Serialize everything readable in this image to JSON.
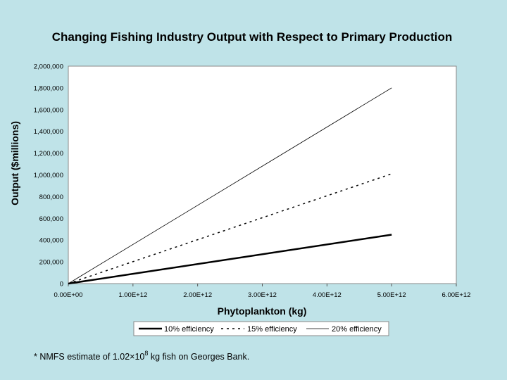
{
  "chart_data": {
    "type": "line",
    "title": "Changing Fishing Industry Output with Respect to Primary Production",
    "xlabel": "Phytoplankton (kg)",
    "ylabel": "Output ($millions)",
    "xlim": [
      0,
      6000000000000
    ],
    "ylim": [
      0,
      2000000
    ],
    "x_ticks": [
      0,
      1000000000000,
      2000000000000,
      3000000000000,
      4000000000000,
      5000000000000,
      6000000000000
    ],
    "x_tick_labels": [
      "0.00E+00",
      "1.00E+12",
      "2.00E+12",
      "3.00E+12",
      "4.00E+12",
      "5.00E+12",
      "6.00E+12"
    ],
    "y_ticks": [
      0,
      200000,
      400000,
      600000,
      800000,
      1000000,
      1200000,
      1400000,
      1600000,
      1800000,
      2000000
    ],
    "y_tick_labels": [
      "0",
      "200,000",
      "400,000",
      "600,000",
      "800,000",
      "1,000,000",
      "1,200,000",
      "1,400,000",
      "1,600,000",
      "1,800,000",
      "2,000,000"
    ],
    "grid": false,
    "legend_position": "bottom",
    "series": [
      {
        "name": "10% efficiency",
        "style": "solid-thick",
        "x": [
          0,
          5000000000000
        ],
        "y": [
          0,
          450000
        ]
      },
      {
        "name": "15% efficiency",
        "style": "dashed",
        "x": [
          0,
          5000000000000
        ],
        "y": [
          0,
          1010000
        ]
      },
      {
        "name": "20% efficiency",
        "style": "solid-thin",
        "x": [
          0,
          5000000000000
        ],
        "y": [
          0,
          1800000
        ]
      }
    ]
  },
  "footnote": {
    "before": "* NMFS estimate of 1.02",
    "times": "×",
    "base": "10",
    "exponent": "8",
    "after": " kg fish on Georges Bank."
  },
  "colors": {
    "background": "#bfe3e8",
    "plot_area": "#ffffff",
    "lines": "#000000"
  }
}
